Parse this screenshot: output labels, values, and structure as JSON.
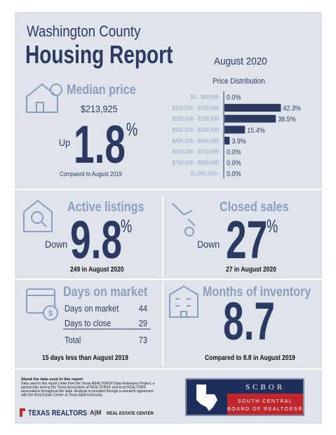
{
  "header": {
    "county": "Washington County",
    "title": "Housing Report",
    "date": "August 2020"
  },
  "median_price": {
    "title": "Median price",
    "value": "$213,925",
    "direction": "Up",
    "change": 1.8,
    "unit": "%",
    "comparison": "Compared to August 2019"
  },
  "price_distribution": {
    "title": "Price Distribution",
    "categories": [
      "$0 - $99,999",
      "$100,000 - $199,999",
      "$200,000 - $299,999",
      "$300,000 - $399,999",
      "$400,000 - $499,999",
      "$500,000 - $749,999",
      "$750,000 - $999,999",
      "$1,000,000+"
    ],
    "values": [
      0,
      42.3,
      38.5,
      15.4,
      3.9,
      0,
      0,
      0
    ],
    "value_labels": [
      "0.0%",
      "42.3%",
      "38.5%",
      "15.4%",
      "3.9%",
      "0.0%",
      "0.0%",
      "0.0%"
    ]
  },
  "active_listings": {
    "title": "Active listings",
    "direction": "Down",
    "change": 9.8,
    "unit": "%",
    "detail": "249 in August 2020"
  },
  "closed_sales": {
    "title": "Closed sales",
    "direction": "Down",
    "change": 27,
    "unit": "%",
    "detail": "27 in August 2020"
  },
  "days_on_market": {
    "title": "Days on market",
    "rows": [
      {
        "label": "Days on market",
        "value": 44
      },
      {
        "label": "Days to close",
        "value": 29
      }
    ],
    "total": {
      "label": "Total",
      "value": 73
    },
    "comparison": "15 days less than August 2019"
  },
  "months_of_inventory": {
    "title": "Months of inventory",
    "value": 8.7,
    "comparison": "Compared to 8.8 in August 2019"
  },
  "footer": {
    "about_title": "About the data used in this report",
    "about_lines": [
      "Data used in this report come from the Texas REALTORS® Data Relevance Project, a",
      "partnership among the Texas Association of REALTORS® and local REALTOR®",
      "associations throughout the state. Analysis is provided through a research agreement",
      "with the Real Estate Center at Texas A&M University."
    ],
    "texas_realtors": "TEXAS REALTORS",
    "real_estate_center": "REAL ESTATE CENTER",
    "scbor": {
      "name": "SCBOR",
      "line1": "SOUTH CENTRAL",
      "line2": "BOARD OF REALTORS®"
    }
  }
}
